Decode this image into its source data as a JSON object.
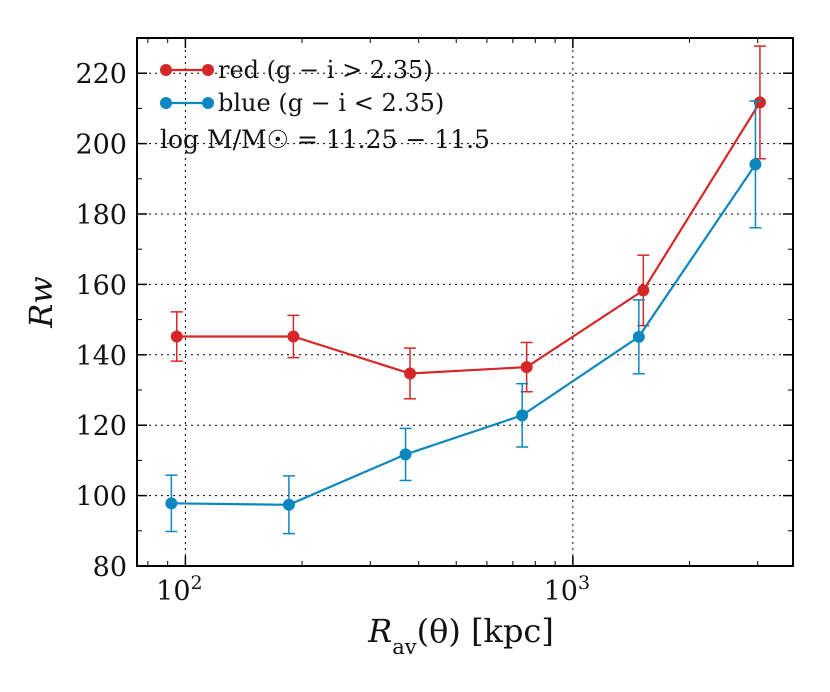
{
  "chart_data": {
    "type": "line",
    "title": "",
    "xlabel": "R_av(θ) [kpc]",
    "xlabel_main": "R",
    "xlabel_sub": "av",
    "xlabel_rest": "(θ) [kpc]",
    "ylabel": "Rw",
    "xscale": "log",
    "xlim": [
      75,
      3700
    ],
    "ylim": [
      80,
      230
    ],
    "yticks": [
      80,
      100,
      120,
      140,
      160,
      180,
      200,
      220
    ],
    "xticks": [
      {
        "value": 100,
        "base": "10",
        "exp": "2"
      },
      {
        "value": 1000,
        "base": "10",
        "exp": "3"
      }
    ],
    "grid": true,
    "legend_position": "top-left",
    "annotation": "log M/M☉ = 11.25 − 11.5",
    "series": [
      {
        "name": "red (g − i > 2.35)",
        "color": "#d62728",
        "x": [
          95,
          190,
          380,
          760,
          1520,
          3040
        ],
        "y": [
          145.2,
          145.2,
          134.7,
          136.5,
          158.3,
          211.7
        ],
        "err": [
          7.0,
          6.0,
          7.2,
          7.0,
          10.0,
          16.0
        ]
      },
      {
        "name": "blue (g − i < 2.35)",
        "color": "#0a87be",
        "x": [
          92,
          185,
          370,
          740,
          1480,
          2960
        ],
        "y": [
          97.8,
          97.4,
          111.7,
          122.8,
          145.1,
          194.1
        ],
        "err": [
          8.0,
          8.2,
          7.4,
          9.0,
          10.5,
          18.0
        ]
      }
    ]
  }
}
